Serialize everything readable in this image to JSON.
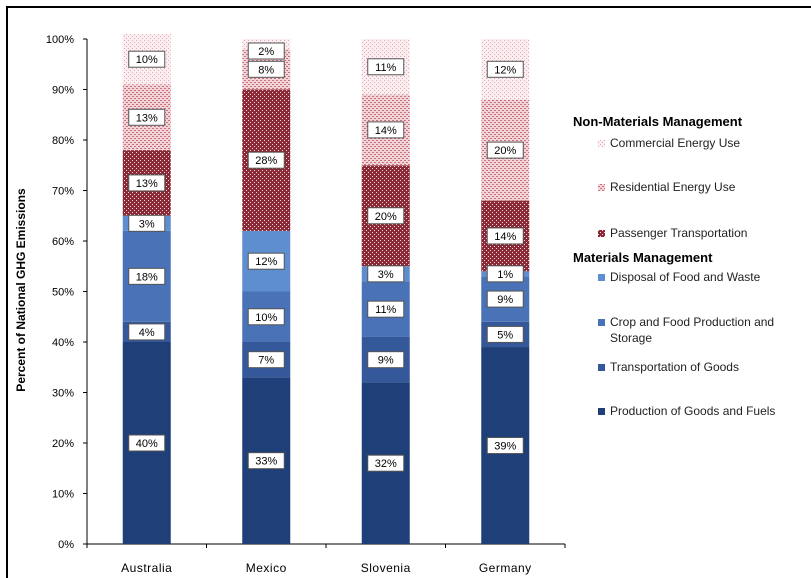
{
  "chart_data": {
    "type": "bar",
    "stacked": true,
    "categories": [
      "Australia",
      "Mexico",
      "Slovenia",
      "Germany"
    ],
    "ylabel": "Percent of National GHG Emissions",
    "ylim": [
      0,
      100
    ],
    "yticks": [
      "0%",
      "10%",
      "20%",
      "30%",
      "40%",
      "50%",
      "60%",
      "70%",
      "80%",
      "90%",
      "100%"
    ],
    "grid": false,
    "legend_position": "right",
    "legend_groups": [
      "Non-Materials Management",
      "Materials Management"
    ],
    "series": [
      {
        "name": "Production of Goods and Fuels",
        "group": "Materials Management",
        "color": "#1f3f78",
        "pattern": "solid",
        "values": [
          40,
          33,
          32,
          39
        ],
        "labels": [
          "40%",
          "33%",
          "32%",
          "39%"
        ]
      },
      {
        "name": "Transportation of Goods",
        "group": "Materials Management",
        "color": "#34589a",
        "pattern": "solid",
        "values": [
          4,
          7,
          9,
          5
        ],
        "labels": [
          "4%",
          "7%",
          "9%",
          "5%"
        ]
      },
      {
        "name": "Crop and Food Production and Storage",
        "group": "Materials Management",
        "color": "#4a72b6",
        "pattern": "solid",
        "values": [
          18,
          10,
          11,
          9
        ],
        "labels": [
          "18%",
          "10%",
          "11%",
          "9%"
        ]
      },
      {
        "name": "Disposal of Food and Waste",
        "group": "Materials Management",
        "color": "#5f8ed0",
        "pattern": "solid",
        "values": [
          3,
          12,
          3,
          1
        ],
        "labels": [
          "3%",
          "12%",
          "3%",
          "1%"
        ]
      },
      {
        "name": "Passenger Transportation",
        "group": "Non-Materials Management",
        "color": "#8a2a36",
        "pattern": "dense",
        "values": [
          13,
          28,
          20,
          14
        ],
        "labels": [
          "13%",
          "28%",
          "20%",
          "14%"
        ]
      },
      {
        "name": "Residential Energy Use",
        "group": "Non-Materials Management",
        "color": "#c9707c",
        "pattern": "medium",
        "values": [
          13,
          8,
          14,
          20
        ],
        "labels": [
          "13%",
          "8%",
          "14%",
          "20%"
        ]
      },
      {
        "name": "Commercial Energy Use",
        "group": "Non-Materials Management",
        "color": "#e6b3bb",
        "pattern": "light",
        "values": [
          10,
          2,
          11,
          12
        ],
        "labels": [
          "10%",
          "2%",
          "11%",
          "12%"
        ]
      }
    ]
  }
}
